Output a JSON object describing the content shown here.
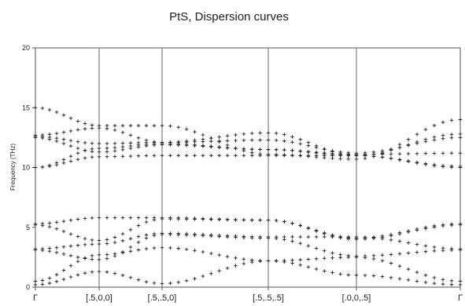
{
  "chart_data": {
    "type": "scatter",
    "title": "PtS, Dispersion curves",
    "ylabel": "Frequency (THz)",
    "xlabel": "",
    "ylim": [
      0,
      20
    ],
    "yticks": [
      0,
      5,
      10,
      15,
      20
    ],
    "grid": false,
    "x_labels": [
      {
        "label": "Γ",
        "pos": 0
      },
      {
        "label": "[.5,0,0]",
        "pos": 1
      },
      {
        "label": "[.5,.5,0]",
        "pos": 2
      },
      {
        "label": "[.5,.5,.5]",
        "pos": 3
      },
      {
        "label": "[.0,0,.5]",
        "pos": 4
      },
      {
        "label": "Γ",
        "pos": 5
      }
    ],
    "segment_divisions": [
      9,
      8,
      13,
      11,
      12
    ],
    "branches": [
      [
        15.0,
        13.5,
        13.5,
        11.1,
        10.7,
        14.0
      ],
      [
        12.7,
        13.3,
        12.1,
        12.9,
        11.0,
        12.8
      ],
      [
        12.6,
        12.0,
        12.1,
        12.3,
        11.2,
        12.5
      ],
      [
        12.5,
        11.3,
        11.9,
        11.5,
        11.1,
        11.2
      ],
      [
        10.0,
        11.6,
        12.0,
        11.5,
        11.0,
        10.1
      ],
      [
        10.0,
        10.9,
        11.0,
        11.0,
        11.0,
        10.0
      ],
      [
        5.3,
        5.8,
        5.8,
        5.6,
        4.1,
        5.3
      ],
      [
        5.2,
        3.9,
        5.7,
        5.6,
        4.0,
        5.2
      ],
      [
        3.2,
        3.6,
        4.5,
        4.2,
        4.2,
        3.2
      ],
      [
        3.1,
        2.3,
        4.4,
        4.1,
        2.6,
        3.1
      ],
      [
        0.5,
        2.7,
        3.3,
        2.2,
        2.5,
        0.5
      ],
      [
        0.2,
        1.3,
        0.3,
        2.2,
        1.0,
        0.2
      ]
    ]
  }
}
